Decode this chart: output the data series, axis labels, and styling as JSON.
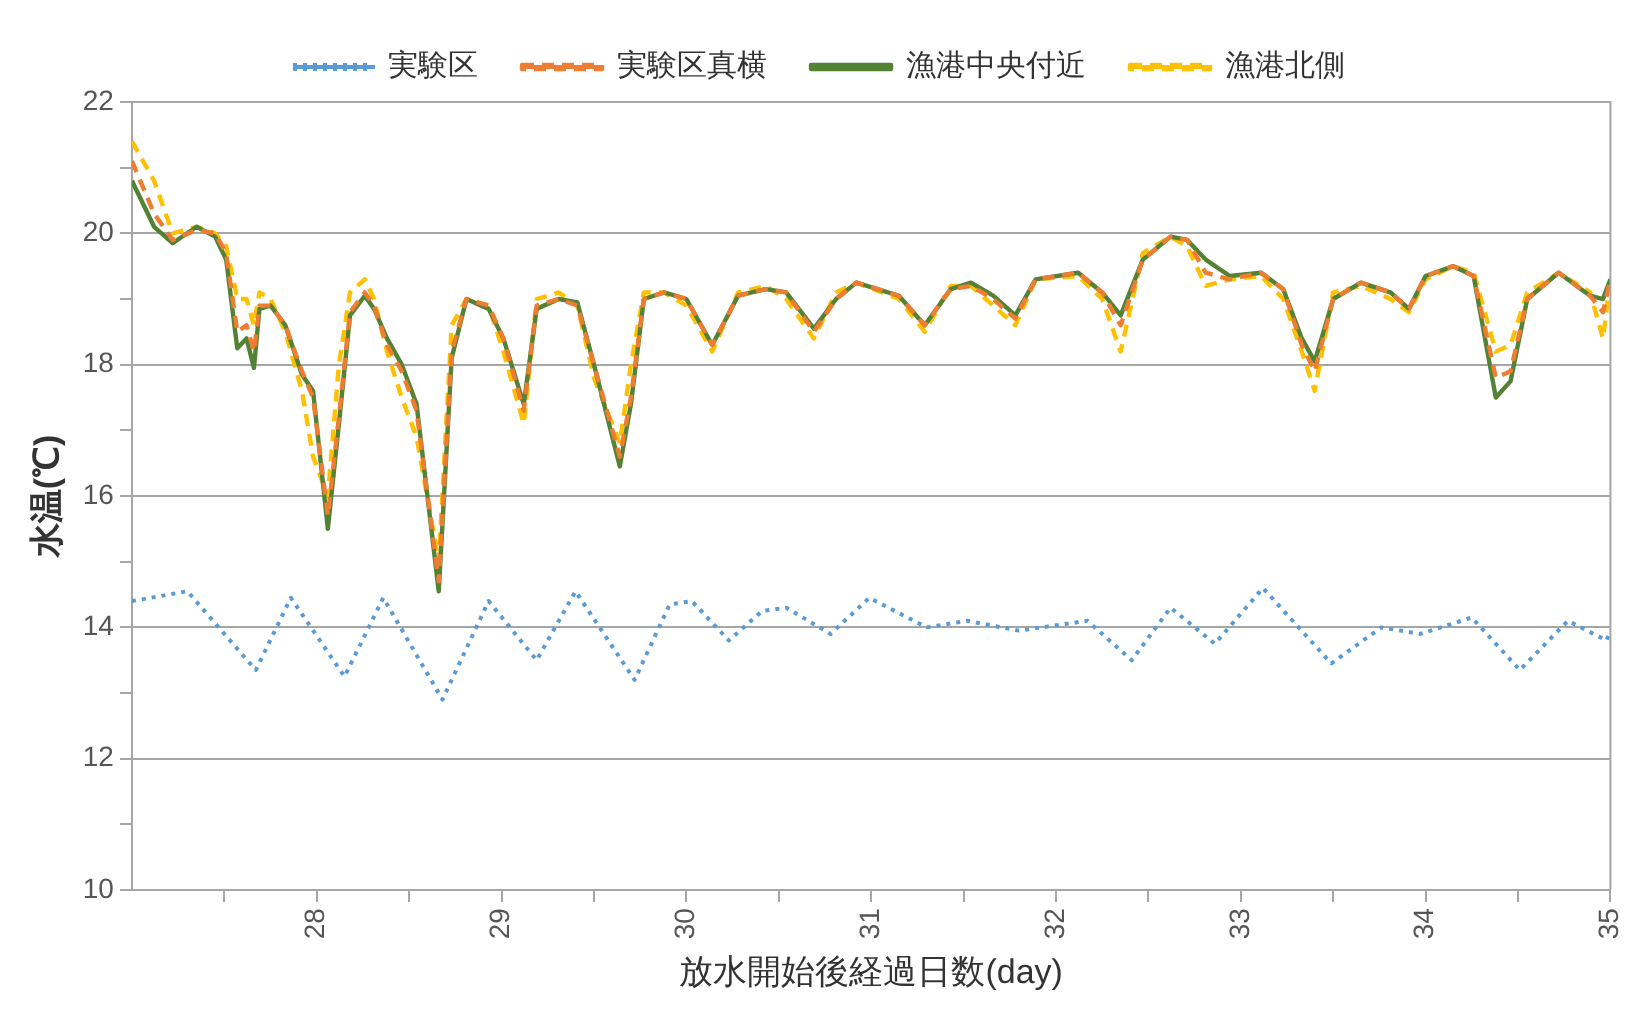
{
  "chart_data": {
    "type": "line",
    "xlabel": "放水開始後経過日数(day)",
    "ylabel": "水温(℃)",
    "xlim": [
      27,
      35
    ],
    "ylim": [
      10,
      22
    ],
    "xticks": [
      {
        "value": 27.5,
        "label": null
      },
      28,
      {
        "value": 28.5,
        "label": null
      },
      29,
      {
        "value": 29.5,
        "label": null
      },
      30,
      {
        "value": 30.5,
        "label": null
      },
      31,
      {
        "value": 31.5,
        "label": null
      },
      32,
      {
        "value": 32.5,
        "label": null
      },
      33,
      {
        "value": 33.5,
        "label": null
      },
      34,
      {
        "value": 34.5,
        "label": null
      },
      35
    ],
    "yticks": [
      10,
      {
        "value": 11,
        "label": null
      },
      12,
      {
        "value": 13,
        "label": null
      },
      14,
      {
        "value": 15,
        "label": null
      },
      16,
      {
        "value": 17,
        "label": null
      },
      18,
      {
        "value": 19,
        "label": null
      },
      20,
      {
        "value": 21,
        "label": null
      },
      22
    ],
    "grid": "y",
    "legend": "top",
    "marker": "none",
    "series": [
      {
        "name": "実験区",
        "color": "#5b9bd5",
        "line_style": "dotted",
        "x": [
          27.0,
          27.3,
          27.67,
          27.86,
          28.15,
          28.36,
          28.68,
          28.93,
          29.19,
          29.4,
          29.72,
          29.91,
          30.03,
          30.23,
          30.41,
          30.54,
          30.78,
          30.99,
          31.3,
          31.52,
          31.8,
          32.17,
          32.41,
          32.62,
          32.86,
          33.12,
          33.49,
          33.76,
          33.97,
          34.25,
          34.51,
          34.77,
          34.98,
          35.0
        ],
        "values": [
          14.4,
          14.55,
          13.35,
          14.45,
          13.25,
          14.45,
          12.9,
          14.4,
          13.5,
          14.55,
          13.2,
          14.35,
          14.4,
          13.8,
          14.25,
          14.3,
          13.9,
          14.45,
          14.0,
          14.1,
          13.95,
          14.1,
          13.5,
          14.3,
          13.75,
          14.6,
          13.45,
          14.0,
          13.9,
          14.15,
          13.35,
          14.1,
          13.8,
          13.95
        ]
      },
      {
        "name": "実験区真横",
        "color": "#ed7d31",
        "line_style": "dashed",
        "x": [
          27.0,
          27.12,
          27.22,
          27.35,
          27.45,
          27.51,
          27.57,
          27.62,
          27.66,
          27.69,
          27.75,
          27.83,
          27.92,
          27.98,
          28.06,
          28.12,
          28.18,
          28.26,
          28.31,
          28.38,
          28.46,
          28.54,
          28.66,
          28.73,
          28.81,
          28.93,
          29.01,
          29.12,
          29.19,
          29.31,
          29.41,
          29.5,
          29.64,
          29.7,
          29.77,
          29.88,
          30.0,
          30.14,
          30.28,
          30.43,
          30.54,
          30.69,
          30.81,
          30.92,
          31.15,
          31.29,
          31.43,
          31.54,
          31.66,
          31.78,
          31.89,
          32.12,
          32.25,
          32.35,
          32.47,
          32.62,
          32.71,
          32.81,
          32.94,
          33.11,
          33.23,
          33.33,
          33.4,
          33.5,
          33.65,
          33.81,
          33.91,
          34.0,
          34.15,
          34.26,
          34.38,
          34.46,
          34.55,
          34.72,
          34.89,
          34.96,
          35.0
        ],
        "values": [
          21.1,
          20.3,
          19.9,
          20.05,
          20.0,
          19.7,
          18.5,
          18.6,
          18.2,
          18.9,
          18.9,
          18.6,
          17.9,
          17.5,
          15.7,
          17.2,
          18.8,
          19.1,
          18.9,
          18.3,
          17.9,
          17.3,
          14.7,
          18.2,
          19.0,
          18.9,
          18.4,
          17.3,
          18.9,
          19.0,
          18.9,
          18.0,
          16.6,
          17.5,
          19.0,
          19.1,
          19.0,
          18.3,
          19.05,
          19.15,
          19.1,
          18.5,
          19.0,
          19.25,
          19.05,
          18.6,
          19.15,
          19.2,
          19.0,
          18.7,
          19.3,
          19.4,
          19.1,
          18.6,
          19.6,
          19.95,
          19.9,
          19.4,
          19.3,
          19.4,
          19.15,
          18.3,
          17.9,
          19.0,
          19.25,
          19.1,
          18.85,
          19.35,
          19.5,
          19.35,
          17.8,
          17.9,
          19.0,
          19.4,
          19.05,
          18.8,
          19.3
        ]
      },
      {
        "name": "漁港中央付近",
        "color": "#548235",
        "line_style": "solid",
        "x": [
          27.0,
          27.12,
          27.22,
          27.35,
          27.45,
          27.51,
          27.57,
          27.62,
          27.66,
          27.69,
          27.75,
          27.83,
          27.92,
          27.98,
          28.06,
          28.12,
          28.18,
          28.26,
          28.31,
          28.38,
          28.46,
          28.54,
          28.66,
          28.73,
          28.81,
          28.93,
          29.01,
          29.12,
          29.19,
          29.31,
          29.41,
          29.5,
          29.64,
          29.7,
          29.77,
          29.88,
          30.0,
          30.14,
          30.28,
          30.43,
          30.54,
          30.69,
          30.81,
          30.92,
          31.15,
          31.29,
          31.43,
          31.54,
          31.66,
          31.78,
          31.89,
          32.12,
          32.25,
          32.35,
          32.47,
          32.62,
          32.71,
          32.81,
          32.94,
          33.11,
          33.23,
          33.33,
          33.4,
          33.5,
          33.65,
          33.81,
          33.91,
          34.0,
          34.15,
          34.26,
          34.38,
          34.46,
          34.55,
          34.72,
          34.89,
          34.96,
          35.0
        ],
        "values": [
          20.8,
          20.1,
          19.85,
          20.1,
          19.95,
          19.6,
          18.25,
          18.4,
          17.95,
          18.85,
          18.9,
          18.6,
          17.85,
          17.6,
          15.5,
          17.1,
          18.75,
          19.05,
          18.85,
          18.4,
          18.0,
          17.4,
          14.55,
          18.1,
          19.0,
          18.85,
          18.4,
          17.4,
          18.85,
          19.0,
          18.95,
          18.0,
          16.45,
          17.4,
          19.0,
          19.1,
          19.0,
          18.3,
          19.05,
          19.15,
          19.1,
          18.55,
          19.0,
          19.25,
          19.05,
          18.6,
          19.15,
          19.25,
          19.05,
          18.75,
          19.3,
          19.4,
          19.1,
          18.75,
          19.6,
          19.95,
          19.9,
          19.6,
          19.35,
          19.4,
          19.15,
          18.4,
          18.05,
          19.0,
          19.25,
          19.1,
          18.85,
          19.35,
          19.5,
          19.35,
          17.5,
          17.75,
          19.0,
          19.4,
          19.05,
          19.0,
          19.3
        ]
      },
      {
        "name": "漁港北側",
        "color": "#ffc000",
        "line_style": "dashed",
        "x": [
          27.0,
          27.12,
          27.22,
          27.35,
          27.45,
          27.51,
          27.57,
          27.62,
          27.66,
          27.69,
          27.75,
          27.83,
          27.92,
          27.98,
          28.06,
          28.12,
          28.18,
          28.26,
          28.31,
          28.38,
          28.46,
          28.54,
          28.66,
          28.73,
          28.81,
          28.93,
          29.01,
          29.12,
          29.19,
          29.31,
          29.41,
          29.5,
          29.64,
          29.7,
          29.77,
          29.88,
          30.0,
          30.14,
          30.28,
          30.43,
          30.54,
          30.69,
          30.81,
          30.92,
          31.15,
          31.29,
          31.43,
          31.54,
          31.66,
          31.78,
          31.89,
          32.12,
          32.25,
          32.35,
          32.47,
          32.62,
          32.71,
          32.81,
          32.94,
          33.11,
          33.23,
          33.33,
          33.4,
          33.5,
          33.65,
          33.81,
          33.91,
          34.0,
          34.15,
          34.26,
          34.38,
          34.46,
          34.55,
          34.72,
          34.89,
          34.96,
          35.0
        ],
        "values": [
          21.4,
          20.8,
          20.0,
          20.1,
          20.0,
          19.8,
          19.0,
          19.0,
          18.6,
          19.1,
          19.0,
          18.5,
          17.6,
          16.6,
          16.0,
          18.0,
          19.1,
          19.3,
          19.0,
          18.2,
          17.5,
          16.9,
          15.0,
          18.6,
          19.0,
          18.9,
          18.2,
          17.1,
          19.0,
          19.1,
          18.9,
          17.8,
          16.8,
          18.0,
          19.1,
          19.1,
          18.9,
          18.2,
          19.1,
          19.2,
          19.0,
          18.4,
          19.1,
          19.25,
          19.0,
          18.5,
          19.2,
          19.2,
          18.9,
          18.6,
          19.3,
          19.35,
          19.0,
          18.2,
          19.7,
          19.95,
          19.8,
          19.2,
          19.3,
          19.35,
          19.0,
          18.2,
          17.6,
          19.1,
          19.2,
          19.0,
          18.8,
          19.3,
          19.5,
          19.4,
          18.2,
          18.3,
          19.1,
          19.4,
          19.1,
          18.4,
          19.3
        ]
      }
    ]
  }
}
